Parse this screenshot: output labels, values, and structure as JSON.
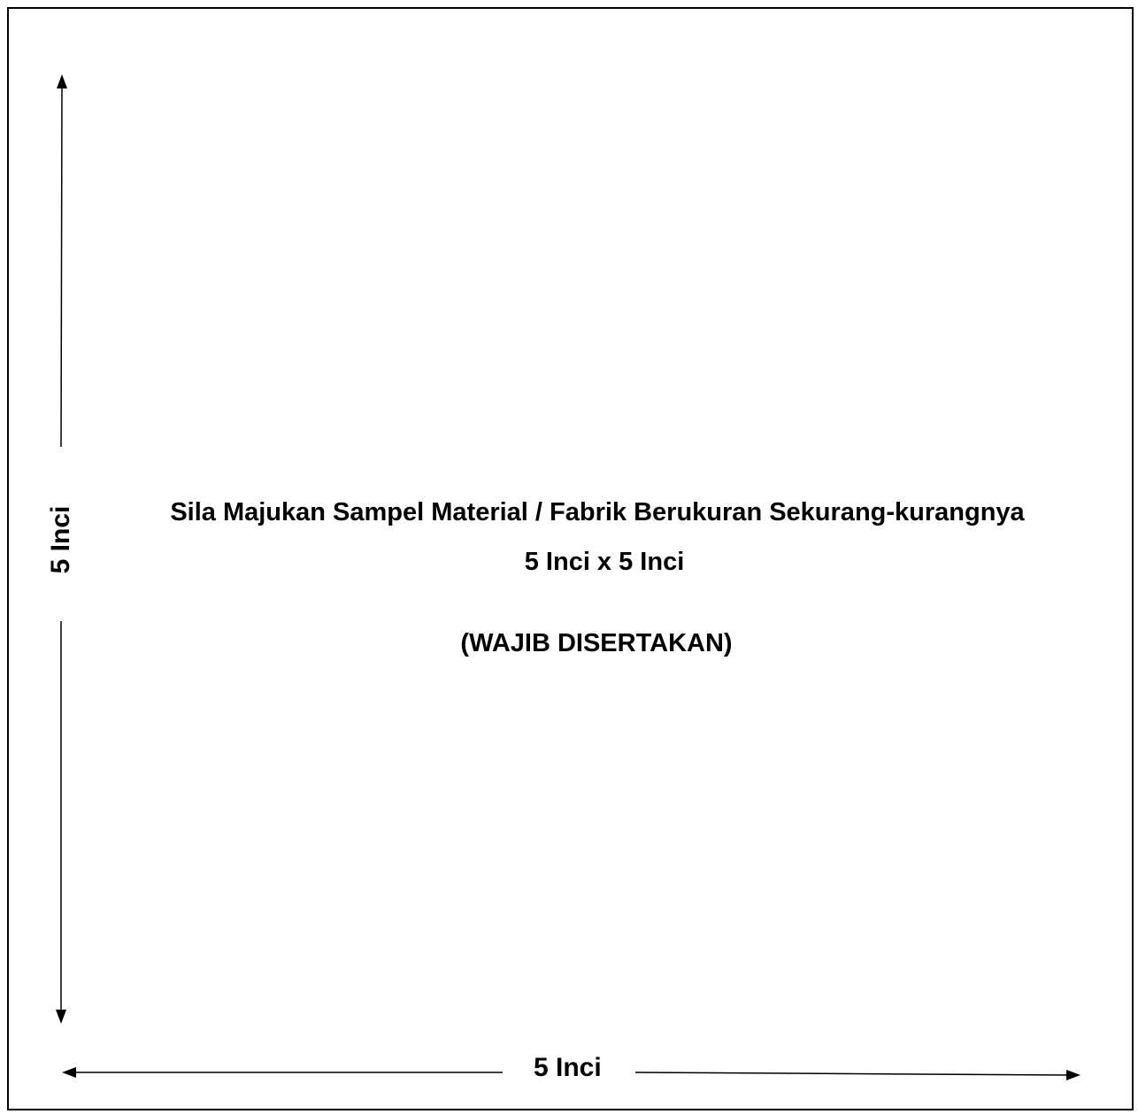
{
  "document": {
    "instruction_line1": "Sila Majukan Sampel Material / Fabrik Berukuran Sekurang-kurangnya",
    "instruction_line2": "5 Inci x 5 Inci",
    "mandatory_note": "(WAJIB DISERTAKAN)",
    "width_label": "5 Inci",
    "height_label": "5 Inci"
  },
  "colors": {
    "ink": "#000000",
    "background": "#ffffff"
  }
}
